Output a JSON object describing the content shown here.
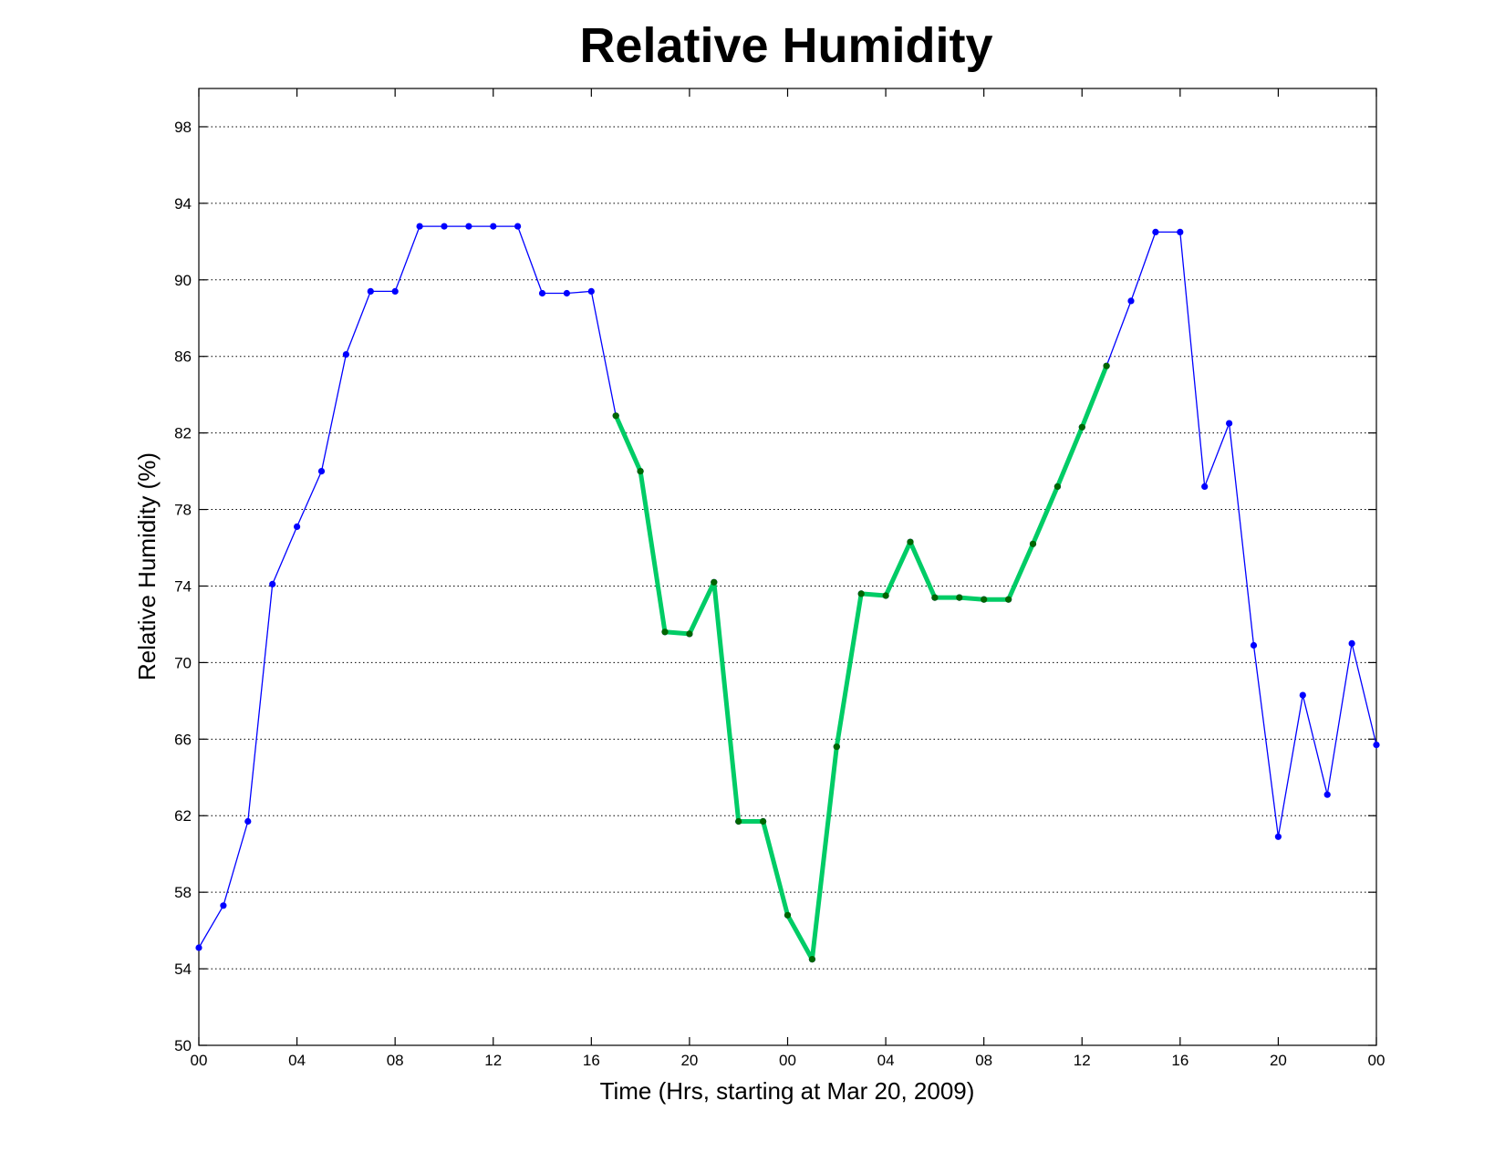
{
  "chart_data": {
    "type": "line",
    "title": "Relative Humidity",
    "xlabel": "Time (Hrs, starting at Mar 20, 2009)",
    "ylabel": "Relative Humidity (%)",
    "ylim": [
      50,
      100
    ],
    "xlim": [
      0,
      48
    ],
    "grid": "y-dotted",
    "yticks": [
      50,
      54,
      58,
      62,
      66,
      70,
      74,
      78,
      82,
      86,
      90,
      94,
      98
    ],
    "xticks": [
      {
        "hour": 0,
        "label": "00"
      },
      {
        "hour": 4,
        "label": "04"
      },
      {
        "hour": 8,
        "label": "08"
      },
      {
        "hour": 12,
        "label": "12"
      },
      {
        "hour": 16,
        "label": "16"
      },
      {
        "hour": 20,
        "label": "20"
      },
      {
        "hour": 24,
        "label": "00"
      },
      {
        "hour": 28,
        "label": "04"
      },
      {
        "hour": 32,
        "label": "08"
      },
      {
        "hour": 36,
        "label": "12"
      },
      {
        "hour": 40,
        "label": "16"
      },
      {
        "hour": 44,
        "label": "20"
      },
      {
        "hour": 48,
        "label": "00"
      }
    ],
    "series": [
      {
        "color": "#0000ff",
        "marker_color": "#0000ff",
        "line_width": "thin",
        "x": [
          0,
          1,
          2,
          3,
          4,
          5,
          6,
          7,
          8,
          9,
          10,
          11,
          12,
          13,
          14,
          15,
          16,
          17,
          18,
          19,
          20,
          21,
          22,
          23,
          24,
          25,
          26,
          27,
          28,
          29,
          30,
          31,
          32,
          33,
          34,
          35,
          36,
          37,
          38,
          39,
          40,
          41,
          42,
          43,
          44,
          45,
          46,
          47,
          48
        ],
        "values": [
          55.1,
          57.3,
          61.7,
          74.1,
          77.1,
          80.0,
          86.1,
          89.4,
          89.4,
          92.8,
          92.8,
          92.8,
          92.8,
          92.8,
          89.3,
          89.3,
          89.4,
          82.9,
          80.0,
          71.6,
          71.5,
          74.2,
          61.7,
          61.7,
          56.8,
          54.5,
          65.6,
          73.6,
          73.5,
          76.3,
          73.4,
          73.4,
          73.3,
          73.3,
          76.2,
          79.2,
          82.3,
          85.5,
          88.9,
          92.5,
          92.5,
          79.2,
          82.5,
          70.9,
          60.9,
          68.3,
          63.1,
          71.0,
          65.7
        ]
      },
      {
        "color": "#00cc66",
        "marker_color": "#006600",
        "line_width": "thick",
        "x": [
          17,
          18,
          19,
          20,
          21,
          22,
          23,
          24,
          25,
          26,
          27,
          28,
          29,
          30,
          31,
          32,
          33,
          34,
          35,
          36,
          37
        ],
        "values": [
          82.9,
          80.0,
          71.6,
          71.5,
          74.2,
          61.7,
          61.7,
          56.8,
          54.5,
          65.6,
          73.6,
          73.5,
          76.3,
          73.4,
          73.4,
          73.3,
          73.3,
          76.2,
          79.2,
          82.3,
          85.5
        ]
      }
    ]
  }
}
